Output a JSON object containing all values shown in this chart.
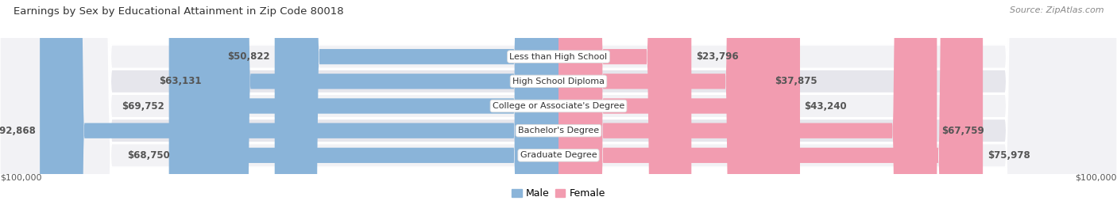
{
  "title": "Earnings by Sex by Educational Attainment in Zip Code 80018",
  "source": "Source: ZipAtlas.com",
  "categories": [
    "Less than High School",
    "High School Diploma",
    "College or Associate's Degree",
    "Bachelor's Degree",
    "Graduate Degree"
  ],
  "male_values": [
    50822,
    63131,
    69752,
    92868,
    68750
  ],
  "female_values": [
    23796,
    37875,
    43240,
    67759,
    75978
  ],
  "male_color": "#8ab4d9",
  "female_color": "#f29cb0",
  "row_bg_light": "#f2f2f5",
  "row_bg_dark": "#e6e6ec",
  "x_max": 100000,
  "xlabel_left": "$100,000",
  "xlabel_right": "$100,000",
  "legend_male": "Male",
  "legend_female": "Female",
  "title_fontsize": 9.5,
  "source_fontsize": 8,
  "value_fontsize": 8.5,
  "cat_fontsize": 8,
  "legend_fontsize": 9,
  "figsize": [
    14.06,
    2.68
  ],
  "dpi": 100
}
